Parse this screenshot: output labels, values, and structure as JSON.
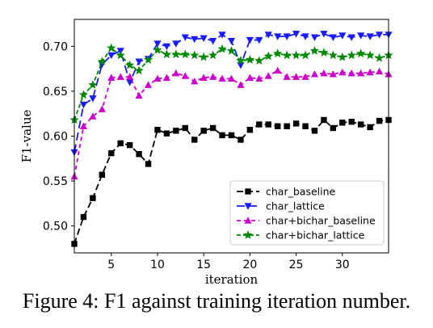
{
  "caption": "Figure 4: F1 against training iteration number.",
  "chart_data": {
    "type": "line",
    "xlabel": "iteration",
    "ylabel": "F1-value",
    "xlim": [
      1,
      35
    ],
    "ylim": [
      0.47,
      0.73
    ],
    "xticks": [
      5,
      10,
      15,
      20,
      25,
      30
    ],
    "yticks": [
      0.5,
      0.55,
      0.6,
      0.65,
      0.7
    ],
    "ytick_labels": [
      "0.50",
      "0.55",
      "0.60",
      "0.65",
      "0.70"
    ],
    "legend_position": "lower-right",
    "x": [
      1,
      2,
      3,
      4,
      5,
      6,
      7,
      8,
      9,
      10,
      11,
      12,
      13,
      14,
      15,
      16,
      17,
      18,
      19,
      20,
      21,
      22,
      23,
      24,
      25,
      26,
      27,
      28,
      29,
      30,
      31,
      32,
      33,
      34,
      35
    ],
    "series": [
      {
        "name": "char_baseline",
        "color": "#000000",
        "marker": "square",
        "dash": "8,4",
        "values": [
          0.48,
          0.51,
          0.531,
          0.557,
          0.581,
          0.592,
          0.59,
          0.58,
          0.569,
          0.607,
          0.603,
          0.606,
          0.609,
          0.596,
          0.606,
          0.609,
          0.601,
          0.601,
          0.596,
          0.607,
          0.613,
          0.613,
          0.611,
          0.611,
          0.614,
          0.611,
          0.606,
          0.618,
          0.609,
          0.615,
          0.616,
          0.613,
          0.61,
          0.617,
          0.618
        ]
      },
      {
        "name": "char_lattice",
        "color": "#1a1aff",
        "marker": "triangle-down",
        "dash": "10,5",
        "values": [
          0.582,
          0.635,
          0.642,
          0.68,
          0.69,
          0.695,
          0.66,
          0.683,
          0.686,
          0.703,
          0.7,
          0.703,
          0.71,
          0.708,
          0.709,
          0.706,
          0.713,
          0.706,
          0.679,
          0.707,
          0.707,
          0.713,
          0.711,
          0.711,
          0.714,
          0.711,
          0.71,
          0.714,
          0.71,
          0.712,
          0.71,
          0.712,
          0.711,
          0.713,
          0.713
        ]
      },
      {
        "name": "char+bichar_baseline",
        "color": "#cc00cc",
        "marker": "triangle-up",
        "dash": "5,4",
        "values": [
          0.555,
          0.611,
          0.622,
          0.63,
          0.665,
          0.666,
          0.666,
          0.645,
          0.657,
          0.664,
          0.665,
          0.67,
          0.667,
          0.661,
          0.665,
          0.666,
          0.664,
          0.664,
          0.657,
          0.665,
          0.664,
          0.667,
          0.673,
          0.666,
          0.666,
          0.666,
          0.669,
          0.67,
          0.669,
          0.671,
          0.67,
          0.67,
          0.671,
          0.672,
          0.669
        ]
      },
      {
        "name": "char+bichar_lattice",
        "color": "#008800",
        "marker": "star",
        "dash": "5,3",
        "values": [
          0.618,
          0.646,
          0.657,
          0.683,
          0.698,
          0.69,
          0.679,
          0.673,
          0.685,
          0.696,
          0.691,
          0.691,
          0.691,
          0.69,
          0.688,
          0.69,
          0.697,
          0.695,
          0.684,
          0.685,
          0.684,
          0.689,
          0.692,
          0.69,
          0.69,
          0.69,
          0.695,
          0.693,
          0.69,
          0.688,
          0.69,
          0.692,
          0.69,
          0.687,
          0.69
        ]
      }
    ]
  }
}
